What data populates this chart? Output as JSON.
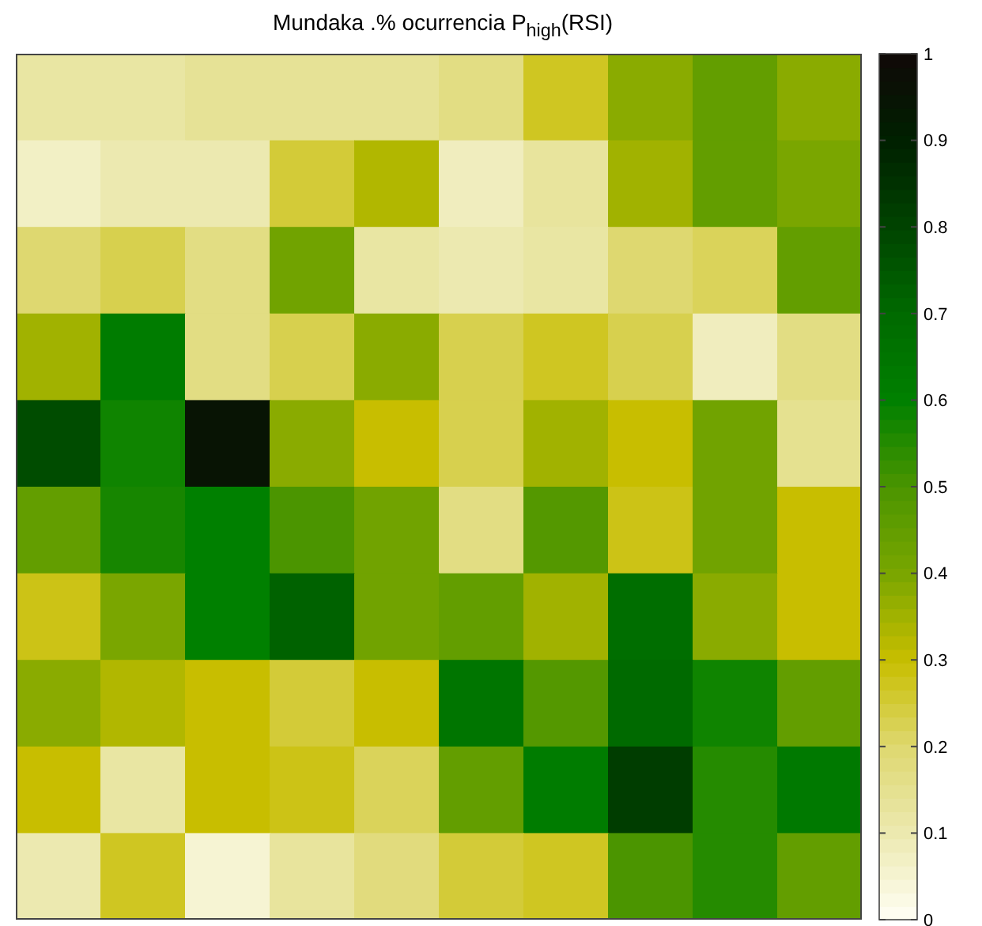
{
  "chart_data": {
    "type": "heatmap",
    "title": "Mundaka .% ocurrencia P$_{high}$(RSI)",
    "categories": [
      null,
      null,
      null,
      null,
      null,
      null,
      null,
      null,
      null,
      null
    ],
    "y_categories": [
      null,
      null,
      null,
      null,
      null,
      null,
      null,
      null,
      null,
      null
    ],
    "cells": [
      [
        0.12,
        0.12,
        0.14,
        0.14,
        0.14,
        0.17,
        0.27,
        0.38,
        0.45,
        0.38
      ],
      [
        0.07,
        0.1,
        0.1,
        0.25,
        0.33,
        0.08,
        0.13,
        0.35,
        0.45,
        0.4
      ],
      [
        0.2,
        0.23,
        0.17,
        0.42,
        0.12,
        0.1,
        0.12,
        0.2,
        0.22,
        0.45
      ],
      [
        0.35,
        0.62,
        0.17,
        0.23,
        0.38,
        0.23,
        0.27,
        0.23,
        0.08,
        0.17
      ],
      [
        0.78,
        0.58,
        0.95,
        0.38,
        0.3,
        0.23,
        0.35,
        0.3,
        0.42,
        0.15
      ],
      [
        0.45,
        0.57,
        0.6,
        0.5,
        0.42,
        0.17,
        0.48,
        0.28,
        0.42,
        0.3
      ],
      [
        0.28,
        0.4,
        0.6,
        0.72,
        0.42,
        0.45,
        0.35,
        0.68,
        0.38,
        0.3
      ],
      [
        0.38,
        0.33,
        0.3,
        0.25,
        0.3,
        0.65,
        0.48,
        0.7,
        0.58,
        0.45
      ],
      [
        0.3,
        0.12,
        0.3,
        0.28,
        0.22,
        0.45,
        0.62,
        0.82,
        0.55,
        0.63
      ],
      [
        0.1,
        0.27,
        0.05,
        0.13,
        0.18,
        0.25,
        0.27,
        0.5,
        0.55,
        0.45
      ]
    ],
    "clim": [
      0,
      1
    ],
    "cticks": [
      0,
      0.1,
      0.2,
      0.3,
      0.4,
      0.5,
      0.6,
      0.7,
      0.8,
      0.9,
      1
    ],
    "tick_labels": false
  }
}
